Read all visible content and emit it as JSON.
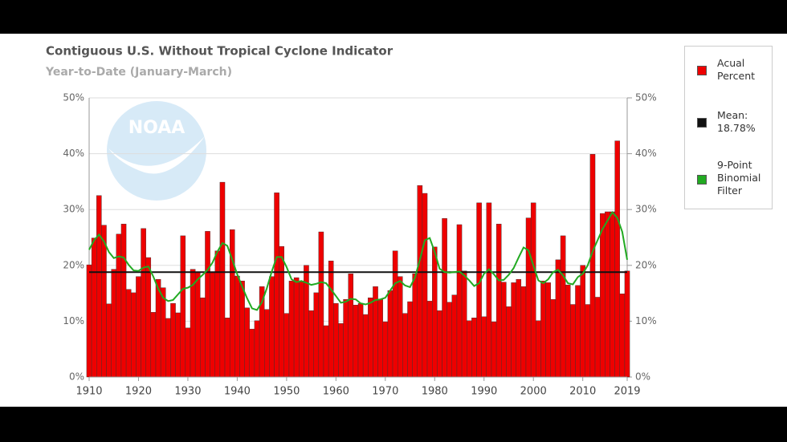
{
  "chart_data": {
    "type": "bar",
    "title": "Contiguous U.S. Without Tropical Cyclone Indicator",
    "subtitle": "Year-to-Date (January-March)",
    "watermark": "NOAA",
    "x": [
      1910,
      1911,
      1912,
      1913,
      1914,
      1915,
      1916,
      1917,
      1918,
      1919,
      1920,
      1921,
      1922,
      1923,
      1924,
      1925,
      1926,
      1927,
      1928,
      1929,
      1930,
      1931,
      1932,
      1933,
      1934,
      1935,
      1936,
      1937,
      1938,
      1939,
      1940,
      1941,
      1942,
      1943,
      1944,
      1945,
      1946,
      1947,
      1948,
      1949,
      1950,
      1951,
      1952,
      1953,
      1954,
      1955,
      1956,
      1957,
      1958,
      1959,
      1960,
      1961,
      1962,
      1963,
      1964,
      1965,
      1966,
      1967,
      1968,
      1969,
      1970,
      1971,
      1972,
      1973,
      1974,
      1975,
      1976,
      1977,
      1978,
      1979,
      1980,
      1981,
      1982,
      1983,
      1984,
      1985,
      1986,
      1987,
      1988,
      1989,
      1990,
      1991,
      1992,
      1993,
      1994,
      1995,
      1996,
      1997,
      1998,
      1999,
      2000,
      2001,
      2002,
      2003,
      2004,
      2005,
      2006,
      2007,
      2008,
      2009,
      2010,
      2011,
      2012,
      2013,
      2014,
      2015,
      2016,
      2017,
      2018,
      2019
    ],
    "series": [
      {
        "name": "Acual Percent",
        "color": "#ee0000",
        "kind": "bar",
        "values": [
          20.1,
          24.9,
          32.5,
          27.2,
          13.1,
          19.3,
          25.6,
          27.4,
          15.7,
          15.1,
          18.0,
          26.6,
          21.4,
          11.6,
          17.5,
          16.0,
          10.5,
          13.2,
          11.5,
          25.3,
          8.8,
          19.3,
          18.8,
          14.2,
          26.1,
          18.7,
          22.6,
          34.9,
          10.6,
          26.4,
          18.1,
          17.2,
          12.4,
          8.6,
          10.1,
          16.2,
          12.1,
          18.0,
          33.0,
          23.4,
          11.4,
          17.2,
          17.8,
          17.2,
          20.0,
          11.9,
          15.1,
          26.0,
          9.2,
          20.8,
          13.2,
          9.6,
          13.9,
          18.5,
          12.9,
          13.2,
          11.2,
          14.2,
          16.2,
          13.9,
          9.9,
          15.5,
          22.6,
          18.0,
          11.4,
          13.5,
          18.5,
          34.3,
          32.9,
          13.6,
          23.3,
          11.9,
          28.4,
          13.4,
          14.7,
          27.3,
          19.0,
          10.1,
          10.6,
          31.2,
          10.8,
          31.2,
          9.9,
          27.4,
          17.0,
          12.6,
          16.9,
          17.5,
          16.2,
          28.5,
          31.2,
          10.1,
          17.2,
          16.9,
          13.9,
          21.0,
          25.3,
          16.5,
          13.0,
          16.4,
          20.0,
          13.0,
          39.9,
          14.3,
          29.3,
          29.6,
          29.6,
          42.3,
          14.9,
          19.0
        ]
      },
      {
        "name": "9-Point Binomial Filter",
        "color": "#22aa22",
        "kind": "line",
        "values": [
          22.8,
          24.5,
          25.5,
          24.3,
          22.4,
          21.3,
          21.6,
          21.4,
          20.1,
          19.1,
          19.0,
          19.6,
          19.8,
          18.0,
          15.8,
          14.2,
          13.6,
          13.8,
          14.8,
          15.8,
          16.0,
          16.5,
          17.5,
          18.3,
          19.2,
          20.5,
          22.5,
          24.0,
          23.5,
          21.0,
          18.4,
          16.2,
          14.1,
          12.3,
          12.0,
          13.4,
          15.9,
          18.9,
          21.5,
          21.5,
          19.7,
          17.5,
          17.0,
          17.2,
          16.9,
          16.5,
          16.7,
          17.0,
          16.8,
          15.7,
          14.5,
          13.3,
          13.5,
          14.0,
          13.9,
          13.2,
          13.0,
          13.3,
          13.8,
          13.9,
          14.2,
          15.5,
          16.8,
          17.2,
          16.4,
          16.1,
          17.8,
          21.0,
          24.5,
          24.9,
          22.4,
          19.4,
          18.8,
          18.7,
          18.8,
          18.9,
          18.2,
          17.3,
          16.3,
          16.8,
          18.5,
          19.3,
          18.4,
          17.3,
          17.4,
          18.3,
          19.5,
          21.4,
          23.2,
          22.7,
          20.0,
          17.3,
          16.8,
          17.5,
          18.8,
          19.2,
          18.2,
          16.8,
          16.6,
          17.9,
          18.5,
          20.0,
          22.5,
          24.5,
          26.5,
          28.0,
          29.5,
          28.5,
          26.0,
          21.0
        ]
      }
    ],
    "mean": {
      "name": "Mean: 18.78%",
      "value": 18.78,
      "color": "#111111"
    },
    "xlim": [
      1910,
      2019
    ],
    "xticks": [
      1910,
      1920,
      1930,
      1940,
      1950,
      1960,
      1970,
      1980,
      1990,
      2000,
      2010,
      2019
    ],
    "ylim": [
      0,
      50
    ],
    "yticks": [
      {
        "value": 0,
        "label": "0%"
      },
      {
        "value": 10,
        "label": "10%"
      },
      {
        "value": 20,
        "label": "20%"
      },
      {
        "value": 30,
        "label": "30%"
      },
      {
        "value": 40,
        "label": "40%"
      },
      {
        "value": 50,
        "label": "50%"
      }
    ],
    "grid": true
  }
}
